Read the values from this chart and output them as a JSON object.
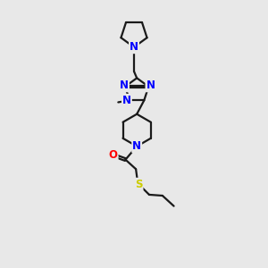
{
  "bg_color": "#e8e8e8",
  "bond_color": "#1a1a1a",
  "N_color": "#0000ff",
  "O_color": "#ff0000",
  "S_color": "#cccc00",
  "line_width": 1.6,
  "font_size": 8.5,
  "xlim": [
    0,
    10
  ],
  "ylim": [
    0,
    14
  ],
  "figsize": [
    3.0,
    3.0
  ],
  "dpi": 100
}
